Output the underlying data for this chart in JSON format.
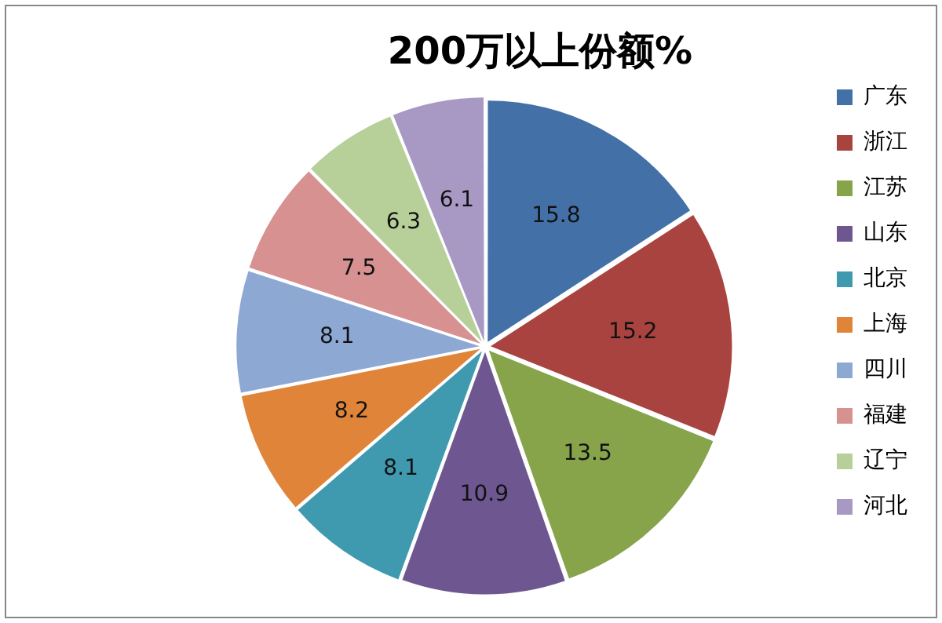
{
  "chart_data": {
    "type": "pie",
    "title": "200万以上份额%",
    "categories": [
      "广东",
      "浙江",
      "江苏",
      "山东",
      "北京",
      "上海",
      "四川",
      "福建",
      "辽宁",
      "河北"
    ],
    "values": [
      15.8,
      15.2,
      13.5,
      10.9,
      8.1,
      8.2,
      8.1,
      7.5,
      6.3,
      6.1
    ],
    "colors": [
      "#4470a8",
      "#a8433f",
      "#87a44b",
      "#6e5690",
      "#3f9ab0",
      "#e0843a",
      "#8ea8d4",
      "#d69190",
      "#b7d09a",
      "#a898c4"
    ],
    "data_labels": true,
    "legend": "right"
  }
}
